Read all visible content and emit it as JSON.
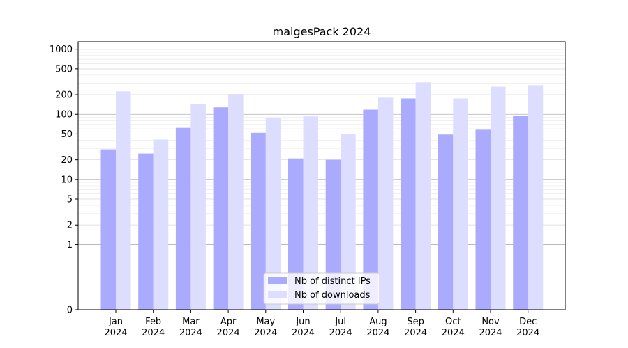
{
  "chart_data": {
    "type": "bar",
    "title": "maigesPack 2024",
    "xlabel": "",
    "ylabel": "",
    "yscale": "symlog",
    "ylim": [
      0,
      1300
    ],
    "y_ticks": [
      0,
      1,
      2,
      5,
      10,
      20,
      50,
      100,
      200,
      500,
      1000
    ],
    "grid": true,
    "legend_position": "bottom-center",
    "categories": [
      "Jan\n2024",
      "Feb\n2024",
      "Mar\n2024",
      "Apr\n2024",
      "May\n2024",
      "Jun\n2024",
      "Jul\n2024",
      "Aug\n2024",
      "Sep\n2024",
      "Oct\n2024",
      "Nov\n2024",
      "Dec\n2024"
    ],
    "series": [
      {
        "name": "Nb of distinct IPs",
        "color": "#aaaaff",
        "values": [
          29,
          25,
          62,
          128,
          52,
          21,
          20,
          118,
          175,
          49,
          58,
          95
        ]
      },
      {
        "name": "Nb of downloads",
        "color": "#ddddff",
        "values": [
          225,
          41,
          145,
          205,
          87,
          93,
          50,
          180,
          310,
          175,
          265,
          280
        ]
      }
    ]
  }
}
